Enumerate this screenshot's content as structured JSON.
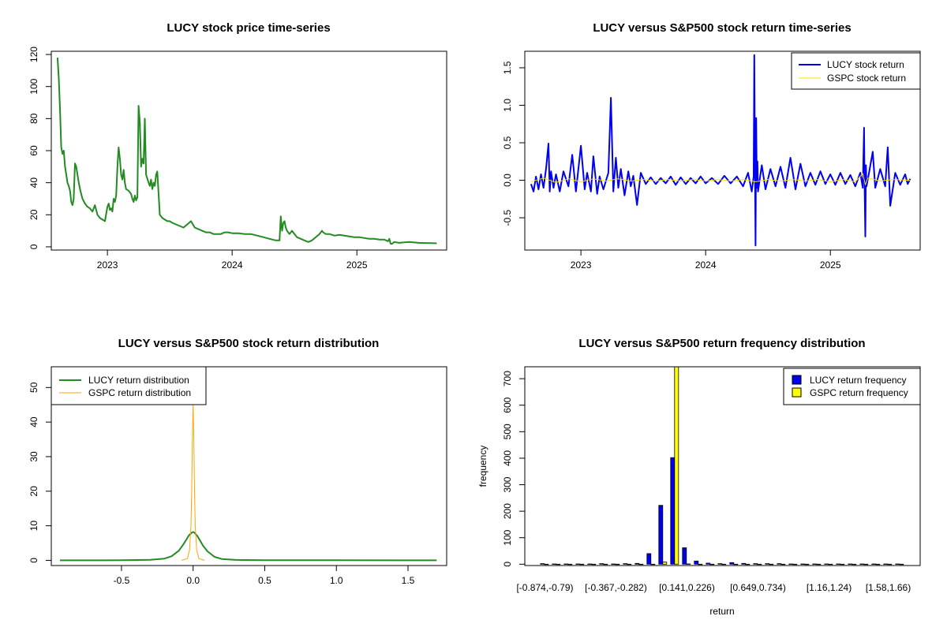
{
  "chart_data": [
    {
      "id": "price",
      "type": "line",
      "title": "LUCY stock price time-series",
      "xlabel": "",
      "ylabel": "",
      "xlim": [
        2022.55,
        2025.72
      ],
      "ylim": [
        -2,
        122
      ],
      "x_ticks": [
        2023,
        2024,
        2025
      ],
      "x_tick_labels": [
        "2023",
        "2024",
        "2025"
      ],
      "y_ticks": [
        0,
        20,
        40,
        60,
        80,
        100,
        120
      ],
      "y_tick_labels": [
        "0",
        "20",
        "40",
        "60",
        "80",
        "100",
        "120"
      ],
      "series": [
        {
          "color": "#228B22",
          "x": [
            2022.6,
            2022.61,
            2022.62,
            2022.63,
            2022.64,
            2022.65,
            2022.66,
            2022.67,
            2022.68,
            2022.69,
            2022.7,
            2022.71,
            2022.72,
            2022.73,
            2022.74,
            2022.75,
            2022.77,
            2022.78,
            2022.79,
            2022.8,
            2022.82,
            2022.84,
            2022.86,
            2022.88,
            2022.9,
            2022.92,
            2022.94,
            2022.96,
            2022.98,
            2023.0,
            2023.01,
            2023.02,
            2023.03,
            2023.04,
            2023.05,
            2023.06,
            2023.07,
            2023.08,
            2023.09,
            2023.1,
            2023.11,
            2023.12,
            2023.13,
            2023.14,
            2023.15,
            2023.17,
            2023.19,
            2023.2,
            2023.21,
            2023.22,
            2023.23,
            2023.24,
            2023.25,
            2023.26,
            2023.27,
            2023.28,
            2023.29,
            2023.3,
            2023.31,
            2023.33,
            2023.34,
            2023.35,
            2023.36,
            2023.37,
            2023.38,
            2023.39,
            2023.4,
            2023.42,
            2023.44,
            2023.46,
            2023.48,
            2023.5,
            2023.52,
            2023.55,
            2023.58,
            2023.61,
            2023.64,
            2023.67,
            2023.7,
            2023.73,
            2023.76,
            2023.79,
            2023.82,
            2023.85,
            2023.88,
            2023.91,
            2023.94,
            2023.97,
            2024.0,
            2024.05,
            2024.1,
            2024.15,
            2024.2,
            2024.25,
            2024.3,
            2024.35,
            2024.38,
            2024.39,
            2024.4,
            2024.41,
            2024.42,
            2024.43,
            2024.44,
            2024.46,
            2024.48,
            2024.5,
            2024.52,
            2024.55,
            2024.58,
            2024.61,
            2024.64,
            2024.67,
            2024.7,
            2024.72,
            2024.73,
            2024.75,
            2024.78,
            2024.82,
            2024.86,
            2024.9,
            2024.94,
            2024.98,
            2025.02,
            2025.06,
            2025.1,
            2025.14,
            2025.18,
            2025.22,
            2025.25,
            2025.26,
            2025.27,
            2025.28,
            2025.3,
            2025.34,
            2025.38,
            2025.42,
            2025.46,
            2025.5,
            2025.55,
            2025.6,
            2025.64
          ],
          "y": [
            118,
            105,
            85,
            62,
            58,
            60,
            50,
            45,
            40,
            38,
            35,
            28,
            26,
            30,
            52,
            50,
            40,
            36,
            33,
            30,
            27,
            25,
            24,
            22,
            26,
            20,
            18,
            17,
            16,
            25,
            27,
            23,
            24,
            22,
            30,
            28,
            32,
            50,
            62,
            55,
            45,
            42,
            48,
            40,
            36,
            35,
            33,
            30,
            28,
            32,
            29,
            31,
            88,
            78,
            50,
            55,
            52,
            80,
            45,
            40,
            38,
            42,
            36,
            40,
            38,
            45,
            47,
            20,
            18,
            17,
            16,
            16,
            15,
            14,
            13,
            12,
            14,
            16,
            12,
            11,
            10,
            9,
            9,
            8,
            8,
            8,
            9,
            9,
            8.5,
            8.5,
            8,
            8,
            7,
            6,
            5,
            4,
            4,
            19,
            10,
            15,
            16,
            12,
            10,
            8,
            10,
            8,
            6,
            5,
            4,
            3,
            4,
            6,
            8,
            10,
            9,
            8,
            8,
            7,
            7.5,
            7,
            6.5,
            6,
            6,
            5.5,
            5,
            5,
            4.5,
            4.5,
            3.5,
            5,
            2,
            1.8,
            3,
            2.5,
            2.8,
            3,
            2.7,
            2.5,
            2.4,
            2.3,
            2.2
          ]
        }
      ]
    },
    {
      "id": "returns",
      "type": "line",
      "title": "LUCY versus S&P500 stock return time-series",
      "xlabel": "",
      "ylabel": "",
      "xlim": [
        2022.55,
        2025.72
      ],
      "ylim": [
        -0.93,
        1.72
      ],
      "x_ticks": [
        2023,
        2024,
        2025
      ],
      "x_tick_labels": [
        "2023",
        "2024",
        "2025"
      ],
      "y_ticks": [
        -0.5,
        0.0,
        0.5,
        1.0,
        1.5
      ],
      "y_tick_labels": [
        "-0.5",
        "0.0",
        "0.5",
        "1.0",
        "1.5"
      ],
      "legend_position": "top-right",
      "series": [
        {
          "name": "LUCY stock return",
          "color": "#0000EE",
          "x": [
            2022.6,
            2022.62,
            2022.64,
            2022.66,
            2022.68,
            2022.7,
            2022.72,
            2022.74,
            2022.75,
            2022.76,
            2022.78,
            2022.8,
            2022.83,
            2022.86,
            2022.9,
            2022.93,
            2022.96,
            2023.0,
            2023.03,
            2023.05,
            2023.08,
            2023.1,
            2023.13,
            2023.15,
            2023.18,
            2023.22,
            2023.24,
            2023.26,
            2023.28,
            2023.3,
            2023.32,
            2023.35,
            2023.38,
            2023.4,
            2023.42,
            2023.45,
            2023.48,
            2023.52,
            2023.56,
            2023.6,
            2023.64,
            2023.68,
            2023.72,
            2023.76,
            2023.8,
            2023.84,
            2023.88,
            2023.92,
            2023.96,
            2024.0,
            2024.05,
            2024.1,
            2024.15,
            2024.2,
            2024.25,
            2024.3,
            2024.34,
            2024.37,
            2024.385,
            2024.39,
            2024.395,
            2024.4,
            2024.405,
            2024.41,
            2024.415,
            2024.42,
            2024.45,
            2024.48,
            2024.52,
            2024.56,
            2024.6,
            2024.64,
            2024.68,
            2024.72,
            2024.76,
            2024.8,
            2024.84,
            2024.88,
            2024.92,
            2024.96,
            2025.0,
            2025.04,
            2025.08,
            2025.12,
            2025.16,
            2025.2,
            2025.24,
            2025.26,
            2025.27,
            2025.275,
            2025.28,
            2025.285,
            2025.29,
            2025.31,
            2025.34,
            2025.36,
            2025.4,
            2025.44,
            2025.46,
            2025.48,
            2025.52,
            2025.56,
            2025.6,
            2025.62,
            2025.64
          ],
          "y": [
            -0.05,
            -0.15,
            0.05,
            -0.12,
            0.08,
            -0.1,
            0.15,
            0.49,
            -0.15,
            0.12,
            -0.1,
            0.08,
            -0.15,
            0.12,
            -0.08,
            0.34,
            -0.15,
            0.46,
            -0.12,
            0.1,
            -0.15,
            0.32,
            -0.18,
            0.05,
            -0.12,
            0.1,
            1.1,
            -0.15,
            0.3,
            -0.1,
            0.15,
            -0.2,
            0.12,
            -0.08,
            0.06,
            -0.33,
            0.1,
            -0.05,
            0.04,
            -0.05,
            0.03,
            -0.04,
            0.05,
            -0.06,
            0.04,
            -0.05,
            0.03,
            -0.04,
            0.05,
            -0.04,
            0.03,
            -0.05,
            0.06,
            -0.04,
            0.05,
            -0.08,
            0.1,
            -0.15,
            0.05,
            1.67,
            0.3,
            -0.87,
            0.83,
            -0.1,
            0.25,
            -0.15,
            0.2,
            -0.12,
            0.15,
            -0.08,
            0.18,
            -0.1,
            0.3,
            -0.12,
            0.22,
            -0.08,
            0.1,
            -0.06,
            0.12,
            -0.05,
            0.08,
            -0.06,
            0.1,
            -0.05,
            0.07,
            -0.08,
            0.1,
            -0.1,
            0.7,
            -0.15,
            -0.75,
            0.2,
            -0.08,
            0.1,
            0.38,
            -0.1,
            0.15,
            -0.08,
            0.44,
            -0.34,
            0.1,
            -0.06,
            0.08,
            -0.05,
            0.02
          ]
        },
        {
          "name": "GSPC stock return",
          "color": "#FFE000",
          "x": [
            2022.6,
            2022.7,
            2022.8,
            2022.9,
            2023.0,
            2023.1,
            2023.2,
            2023.3,
            2023.4,
            2023.5,
            2023.6,
            2023.7,
            2023.8,
            2023.9,
            2024.0,
            2024.1,
            2024.2,
            2024.3,
            2024.4,
            2024.5,
            2024.6,
            2024.7,
            2024.8,
            2024.9,
            2025.0,
            2025.1,
            2025.2,
            2025.26,
            2025.28,
            2025.3,
            2025.4,
            2025.5,
            2025.64
          ],
          "y": [
            -0.02,
            0.03,
            -0.03,
            0.02,
            -0.02,
            0.02,
            -0.01,
            0.02,
            -0.01,
            0.01,
            -0.01,
            0.01,
            -0.01,
            0.01,
            -0.01,
            0.01,
            -0.01,
            0.01,
            -0.02,
            0.01,
            -0.01,
            0.01,
            -0.01,
            0.01,
            -0.02,
            0.01,
            -0.02,
            0.09,
            -0.06,
            0.03,
            -0.01,
            0.01,
            0.0
          ]
        }
      ]
    },
    {
      "id": "density",
      "type": "line",
      "title": "LUCY versus S&P500 stock return distribution",
      "xlabel": "",
      "ylabel": "",
      "xlim": [
        -0.99,
        1.77
      ],
      "ylim": [
        -1.5,
        56
      ],
      "x_ticks": [
        -0.5,
        0.0,
        0.5,
        1.0,
        1.5
      ],
      "x_tick_labels": [
        "-0.5",
        "0.0",
        "0.5",
        "1.0",
        "1.5"
      ],
      "y_ticks": [
        0,
        10,
        20,
        30,
        40,
        50
      ],
      "y_tick_labels": [
        "0",
        "10",
        "20",
        "30",
        "40",
        "50"
      ],
      "legend_position": "top-left",
      "series": [
        {
          "name": "LUCY return distribution",
          "color": "#228B22",
          "x": [
            -0.93,
            -0.5,
            -0.3,
            -0.2,
            -0.15,
            -0.1,
            -0.07,
            -0.05,
            -0.03,
            -0.01,
            0.0,
            0.01,
            0.03,
            0.05,
            0.07,
            0.1,
            0.15,
            0.2,
            0.3,
            0.5,
            1.0,
            1.5,
            1.7
          ],
          "y": [
            0,
            0.02,
            0.15,
            0.5,
            1.2,
            2.8,
            4.5,
            5.8,
            7.2,
            8.0,
            8.2,
            8.0,
            7.0,
            5.6,
            4.2,
            2.6,
            1.0,
            0.4,
            0.12,
            0.05,
            0.02,
            0.01,
            0
          ]
        },
        {
          "name": "GSPC return distribution",
          "color": "#FFA500",
          "x": [
            -0.08,
            -0.04,
            -0.025,
            -0.015,
            -0.01,
            -0.005,
            0.0,
            0.005,
            0.01,
            0.015,
            0.025,
            0.04,
            0.08
          ],
          "y": [
            0,
            0.5,
            3,
            10,
            20,
            35,
            45,
            35,
            20,
            10,
            3,
            0.5,
            0
          ]
        }
      ]
    },
    {
      "id": "frequency",
      "type": "bar",
      "title": "LUCY versus S&P500 return frequency distribution",
      "xlabel": "return",
      "ylabel": "frequency",
      "ylim": [
        -5,
        745
      ],
      "y_ticks": [
        0,
        100,
        200,
        300,
        400,
        500,
        600,
        700
      ],
      "y_tick_labels": [
        "0",
        "100",
        "200",
        "300",
        "400",
        "500",
        "600",
        "700"
      ],
      "legend_position": "top-right",
      "category_tick_labels": [
        "[-0.874,-0.79)",
        "[-0.367,-0.282)",
        "[0.141,0.226)",
        "[0.649,0.734)",
        "[1.16,1.24)",
        "[1.58,1.66)"
      ],
      "category_tick_indices": [
        0,
        6,
        12,
        18,
        24,
        29
      ],
      "series": [
        {
          "name": "LUCY return frequency",
          "color": "#0000EE",
          "values": [
            2,
            1,
            1,
            1,
            1,
            2,
            1,
            2,
            3,
            40,
            222,
            402,
            62,
            12,
            4,
            2,
            6,
            3,
            2,
            2,
            2,
            1,
            1,
            1,
            1,
            1,
            1,
            1,
            1,
            1,
            1
          ]
        },
        {
          "name": "GSPC return frequency",
          "color": "#FFFF00",
          "values": [
            0,
            0,
            0,
            0,
            0,
            0,
            0,
            0,
            0,
            0,
            8,
            750,
            1,
            0,
            0,
            0,
            0,
            0,
            0,
            0,
            0,
            0,
            0,
            0,
            0,
            0,
            0,
            0,
            0,
            0,
            0
          ]
        }
      ]
    }
  ]
}
